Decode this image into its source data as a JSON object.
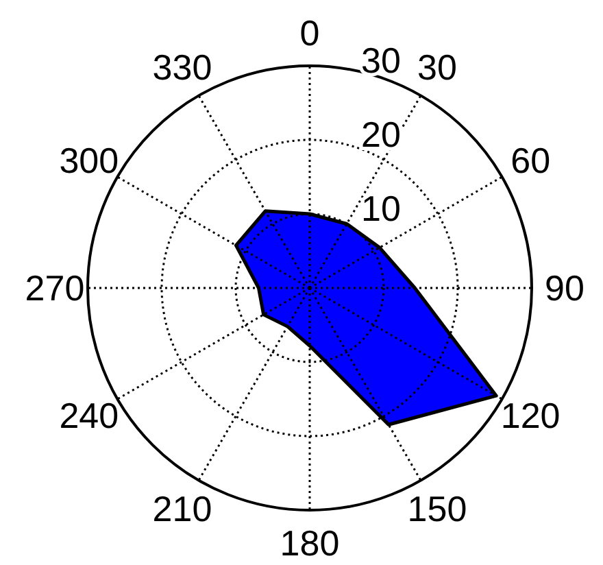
{
  "chart_data": {
    "type": "radar",
    "categories": [
      "0",
      "30",
      "60",
      "90",
      "120",
      "150",
      "180",
      "210",
      "240",
      "270",
      "300",
      "330"
    ],
    "series": [
      {
        "color": "#0000ff",
        "values": [
          10,
          10,
          10.9,
          14.2,
          29.1,
          21.3,
          7.8,
          6,
          7.2,
          6.9,
          11.5,
          12
        ]
      }
    ],
    "ylim": [
      0,
      30
    ],
    "yticks": [
      10,
      20,
      30
    ],
    "grid": true
  }
}
